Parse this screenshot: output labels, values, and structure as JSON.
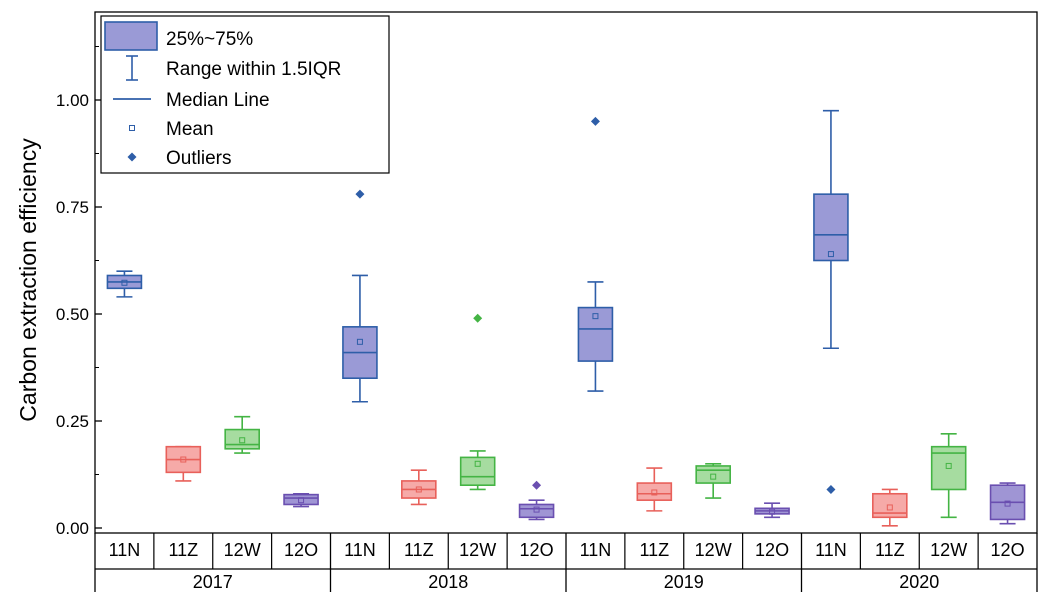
{
  "chart_data": {
    "type": "box",
    "ylabel": "Carbon extraction efficiency",
    "xlabel": "",
    "ylim": [
      0,
      1.2
    ],
    "yticks": [
      "0.00",
      "0.25",
      "0.50",
      "0.75",
      "1.00"
    ],
    "ytick_values": [
      0,
      0.25,
      0.5,
      0.75,
      1.0
    ],
    "grid": false,
    "legend_position": "top-left",
    "legend": [
      {
        "kind": "box",
        "label": "25%~75%"
      },
      {
        "kind": "range",
        "label": "Range within 1.5IQR"
      },
      {
        "kind": "median",
        "label": "Median Line"
      },
      {
        "kind": "mean",
        "label": "Mean"
      },
      {
        "kind": "outlier",
        "label": "Outliers"
      }
    ],
    "colors": {
      "11N": {
        "stroke": "#2e5ea8",
        "fill": "#9a9ad6"
      },
      "11Z": {
        "stroke": "#e8605a",
        "fill": "#f6aaa8"
      },
      "12W": {
        "stroke": "#44b444",
        "fill": "#a6dca0"
      },
      "12O": {
        "stroke": "#6a4fb0",
        "fill": "#9f95d4"
      }
    },
    "groups": [
      {
        "year": "2017",
        "boxes": [
          {
            "cat": "11N",
            "whisker_low": 0.54,
            "q1": 0.56,
            "median": 0.575,
            "q3": 0.59,
            "whisker_high": 0.6,
            "mean": 0.573,
            "outliers": []
          },
          {
            "cat": "11Z",
            "whisker_low": 0.11,
            "q1": 0.13,
            "median": 0.16,
            "q3": 0.19,
            "whisker_high": 0.19,
            "mean": 0.16,
            "outliers": []
          },
          {
            "cat": "12W",
            "whisker_low": 0.175,
            "q1": 0.185,
            "median": 0.195,
            "q3": 0.23,
            "whisker_high": 0.26,
            "mean": 0.205,
            "outliers": []
          },
          {
            "cat": "12O",
            "whisker_low": 0.05,
            "q1": 0.055,
            "median": 0.07,
            "q3": 0.078,
            "whisker_high": 0.08,
            "mean": 0.065,
            "outliers": []
          }
        ]
      },
      {
        "year": "2018",
        "boxes": [
          {
            "cat": "11N",
            "whisker_low": 0.295,
            "q1": 0.35,
            "median": 0.41,
            "q3": 0.47,
            "whisker_high": 0.59,
            "mean": 0.435,
            "outliers": [
              0.78
            ]
          },
          {
            "cat": "11Z",
            "whisker_low": 0.055,
            "q1": 0.07,
            "median": 0.09,
            "q3": 0.11,
            "whisker_high": 0.135,
            "mean": 0.09,
            "outliers": []
          },
          {
            "cat": "12W",
            "whisker_low": 0.09,
            "q1": 0.1,
            "median": 0.12,
            "q3": 0.165,
            "whisker_high": 0.18,
            "mean": 0.15,
            "outliers": [
              0.49
            ]
          },
          {
            "cat": "12O",
            "whisker_low": 0.02,
            "q1": 0.025,
            "median": 0.045,
            "q3": 0.055,
            "whisker_high": 0.065,
            "mean": 0.043,
            "outliers": [
              0.1
            ]
          }
        ]
      },
      {
        "year": "2019",
        "boxes": [
          {
            "cat": "11N",
            "whisker_low": 0.32,
            "q1": 0.39,
            "median": 0.465,
            "q3": 0.515,
            "whisker_high": 0.575,
            "mean": 0.495,
            "outliers": [
              0.95
            ]
          },
          {
            "cat": "11Z",
            "whisker_low": 0.04,
            "q1": 0.065,
            "median": 0.08,
            "q3": 0.105,
            "whisker_high": 0.14,
            "mean": 0.083,
            "outliers": []
          },
          {
            "cat": "12W",
            "whisker_low": 0.07,
            "q1": 0.105,
            "median": 0.135,
            "q3": 0.145,
            "whisker_high": 0.15,
            "mean": 0.12,
            "outliers": []
          },
          {
            "cat": "12O",
            "whisker_low": 0.025,
            "q1": 0.033,
            "median": 0.04,
            "q3": 0.046,
            "whisker_high": 0.058,
            "mean": 0.038,
            "outliers": []
          }
        ]
      },
      {
        "year": "2020",
        "boxes": [
          {
            "cat": "11N",
            "whisker_low": 0.42,
            "q1": 0.625,
            "median": 0.685,
            "q3": 0.78,
            "whisker_high": 0.975,
            "mean": 0.64,
            "outliers": [
              0.09
            ]
          },
          {
            "cat": "11Z",
            "whisker_low": 0.005,
            "q1": 0.025,
            "median": 0.035,
            "q3": 0.08,
            "whisker_high": 0.09,
            "mean": 0.048,
            "outliers": []
          },
          {
            "cat": "12W",
            "whisker_low": 0.025,
            "q1": 0.09,
            "median": 0.175,
            "q3": 0.19,
            "whisker_high": 0.22,
            "mean": 0.145,
            "outliers": []
          },
          {
            "cat": "12O",
            "whisker_low": 0.01,
            "q1": 0.02,
            "median": 0.06,
            "q3": 0.1,
            "whisker_high": 0.105,
            "mean": 0.057,
            "outliers": []
          }
        ]
      }
    ]
  }
}
